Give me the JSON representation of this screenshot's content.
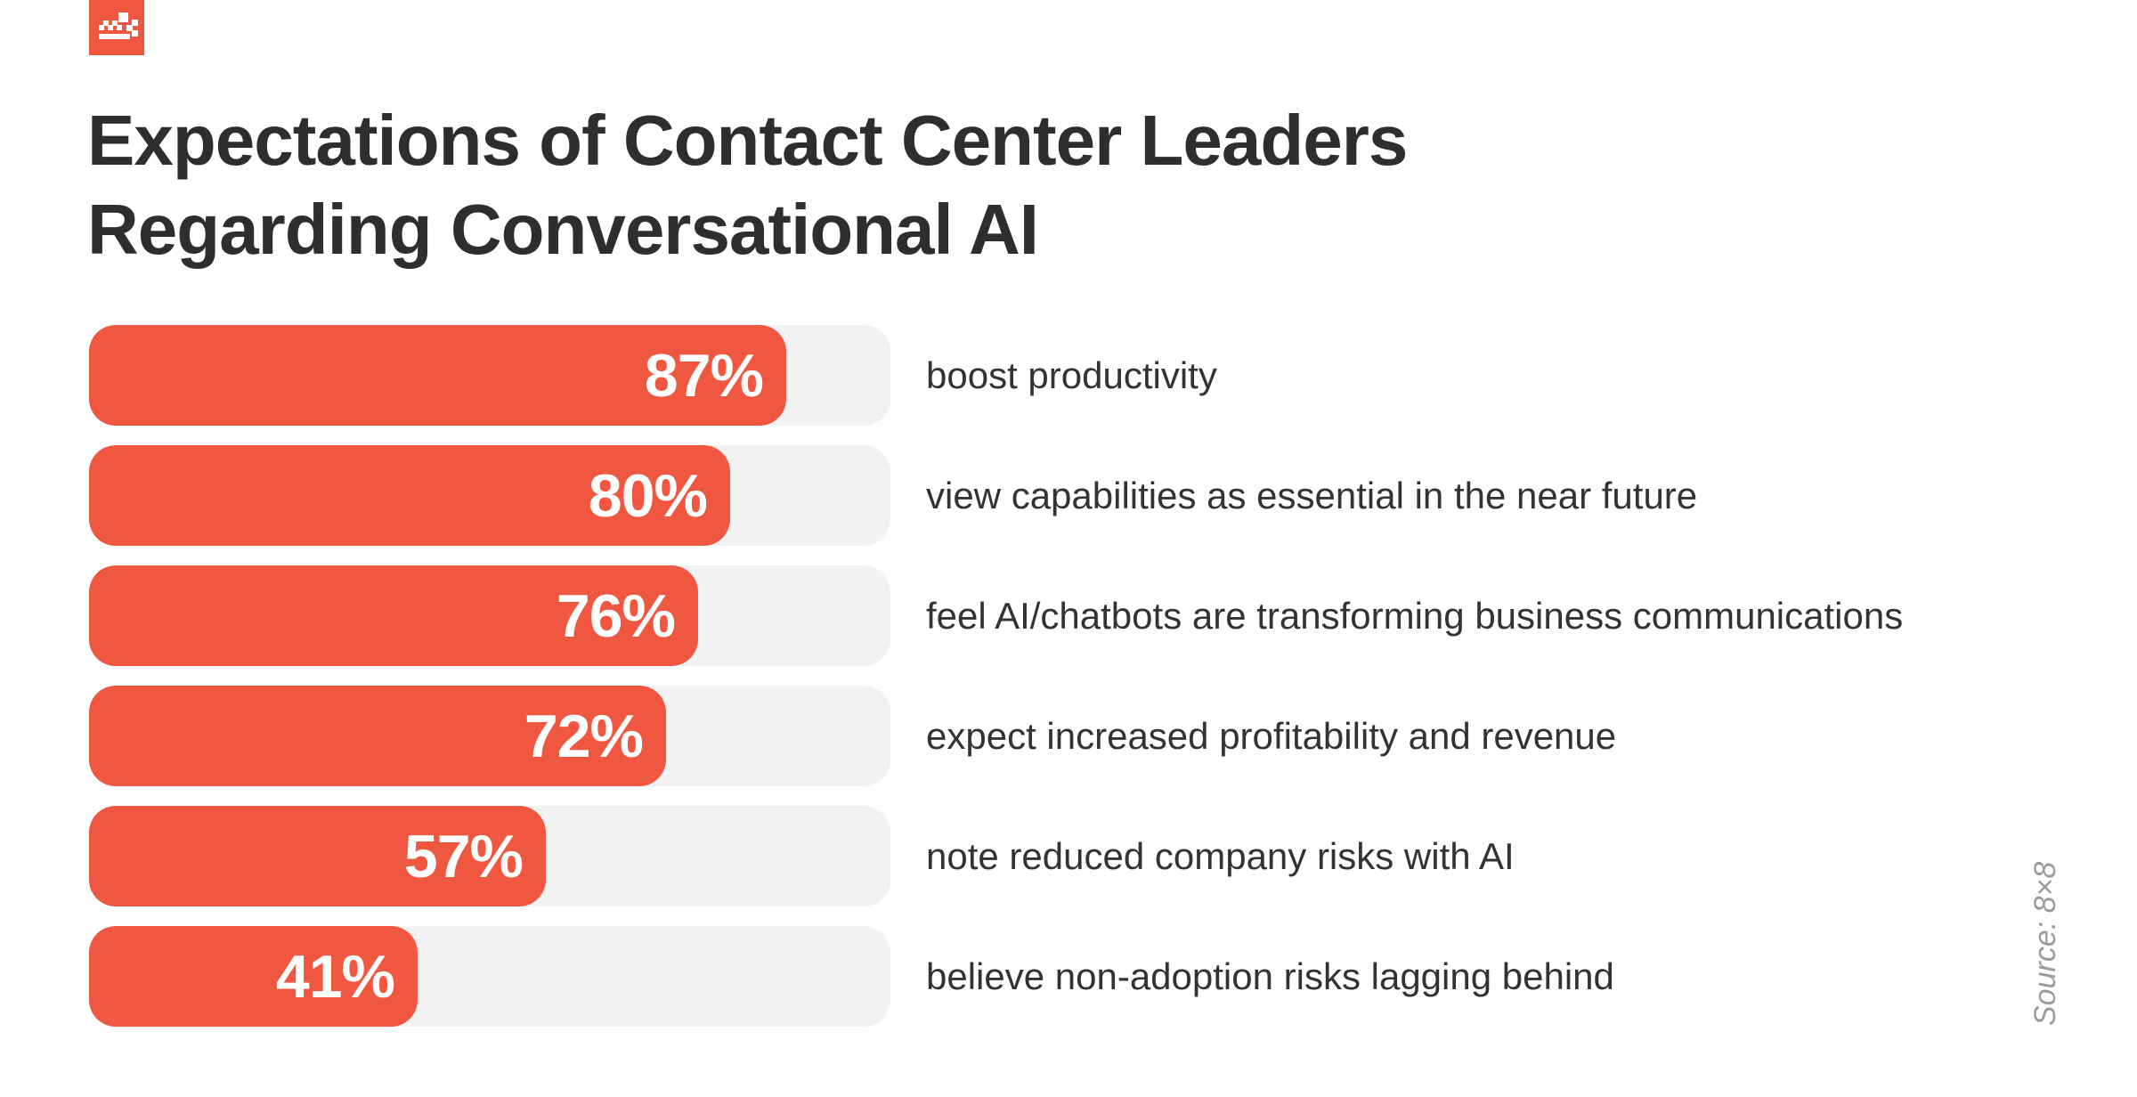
{
  "colors": {
    "accent": "#EF5740",
    "track": "#F2F2F2",
    "title": "#2E2E2E",
    "label": "#333333",
    "source": "#9B9B9B"
  },
  "header": {
    "title": "Expectations of Contact Center Leaders Regarding Conversational AI",
    "title_lines": [
      "Expectations of Contact Center Leaders",
      "Regarding Conversational AI"
    ]
  },
  "logo": {
    "icon": "pixel-chart-logo"
  },
  "source": {
    "text": "Source: 8×8"
  },
  "chart_data": {
    "type": "bar",
    "orientation": "horizontal",
    "title": "Expectations of Contact Center Leaders Regarding Conversational AI",
    "xlim": [
      0,
      100
    ],
    "unit": "%",
    "grid": false,
    "legend": false,
    "categories": [
      "boost productivity",
      "view capabilities as essential in the near future",
      "feel AI/chatbots are transforming business communications",
      "expect increased profitability and revenue",
      "note reduced company risks with AI",
      "believe non-adoption risks lagging behind"
    ],
    "values": [
      87,
      80,
      76,
      72,
      57,
      41
    ],
    "value_labels": [
      "87%",
      "80%",
      "76%",
      "72%",
      "57%",
      "41%"
    ],
    "bar_color": "#EF5740",
    "track_color": "#F2F2F2"
  }
}
